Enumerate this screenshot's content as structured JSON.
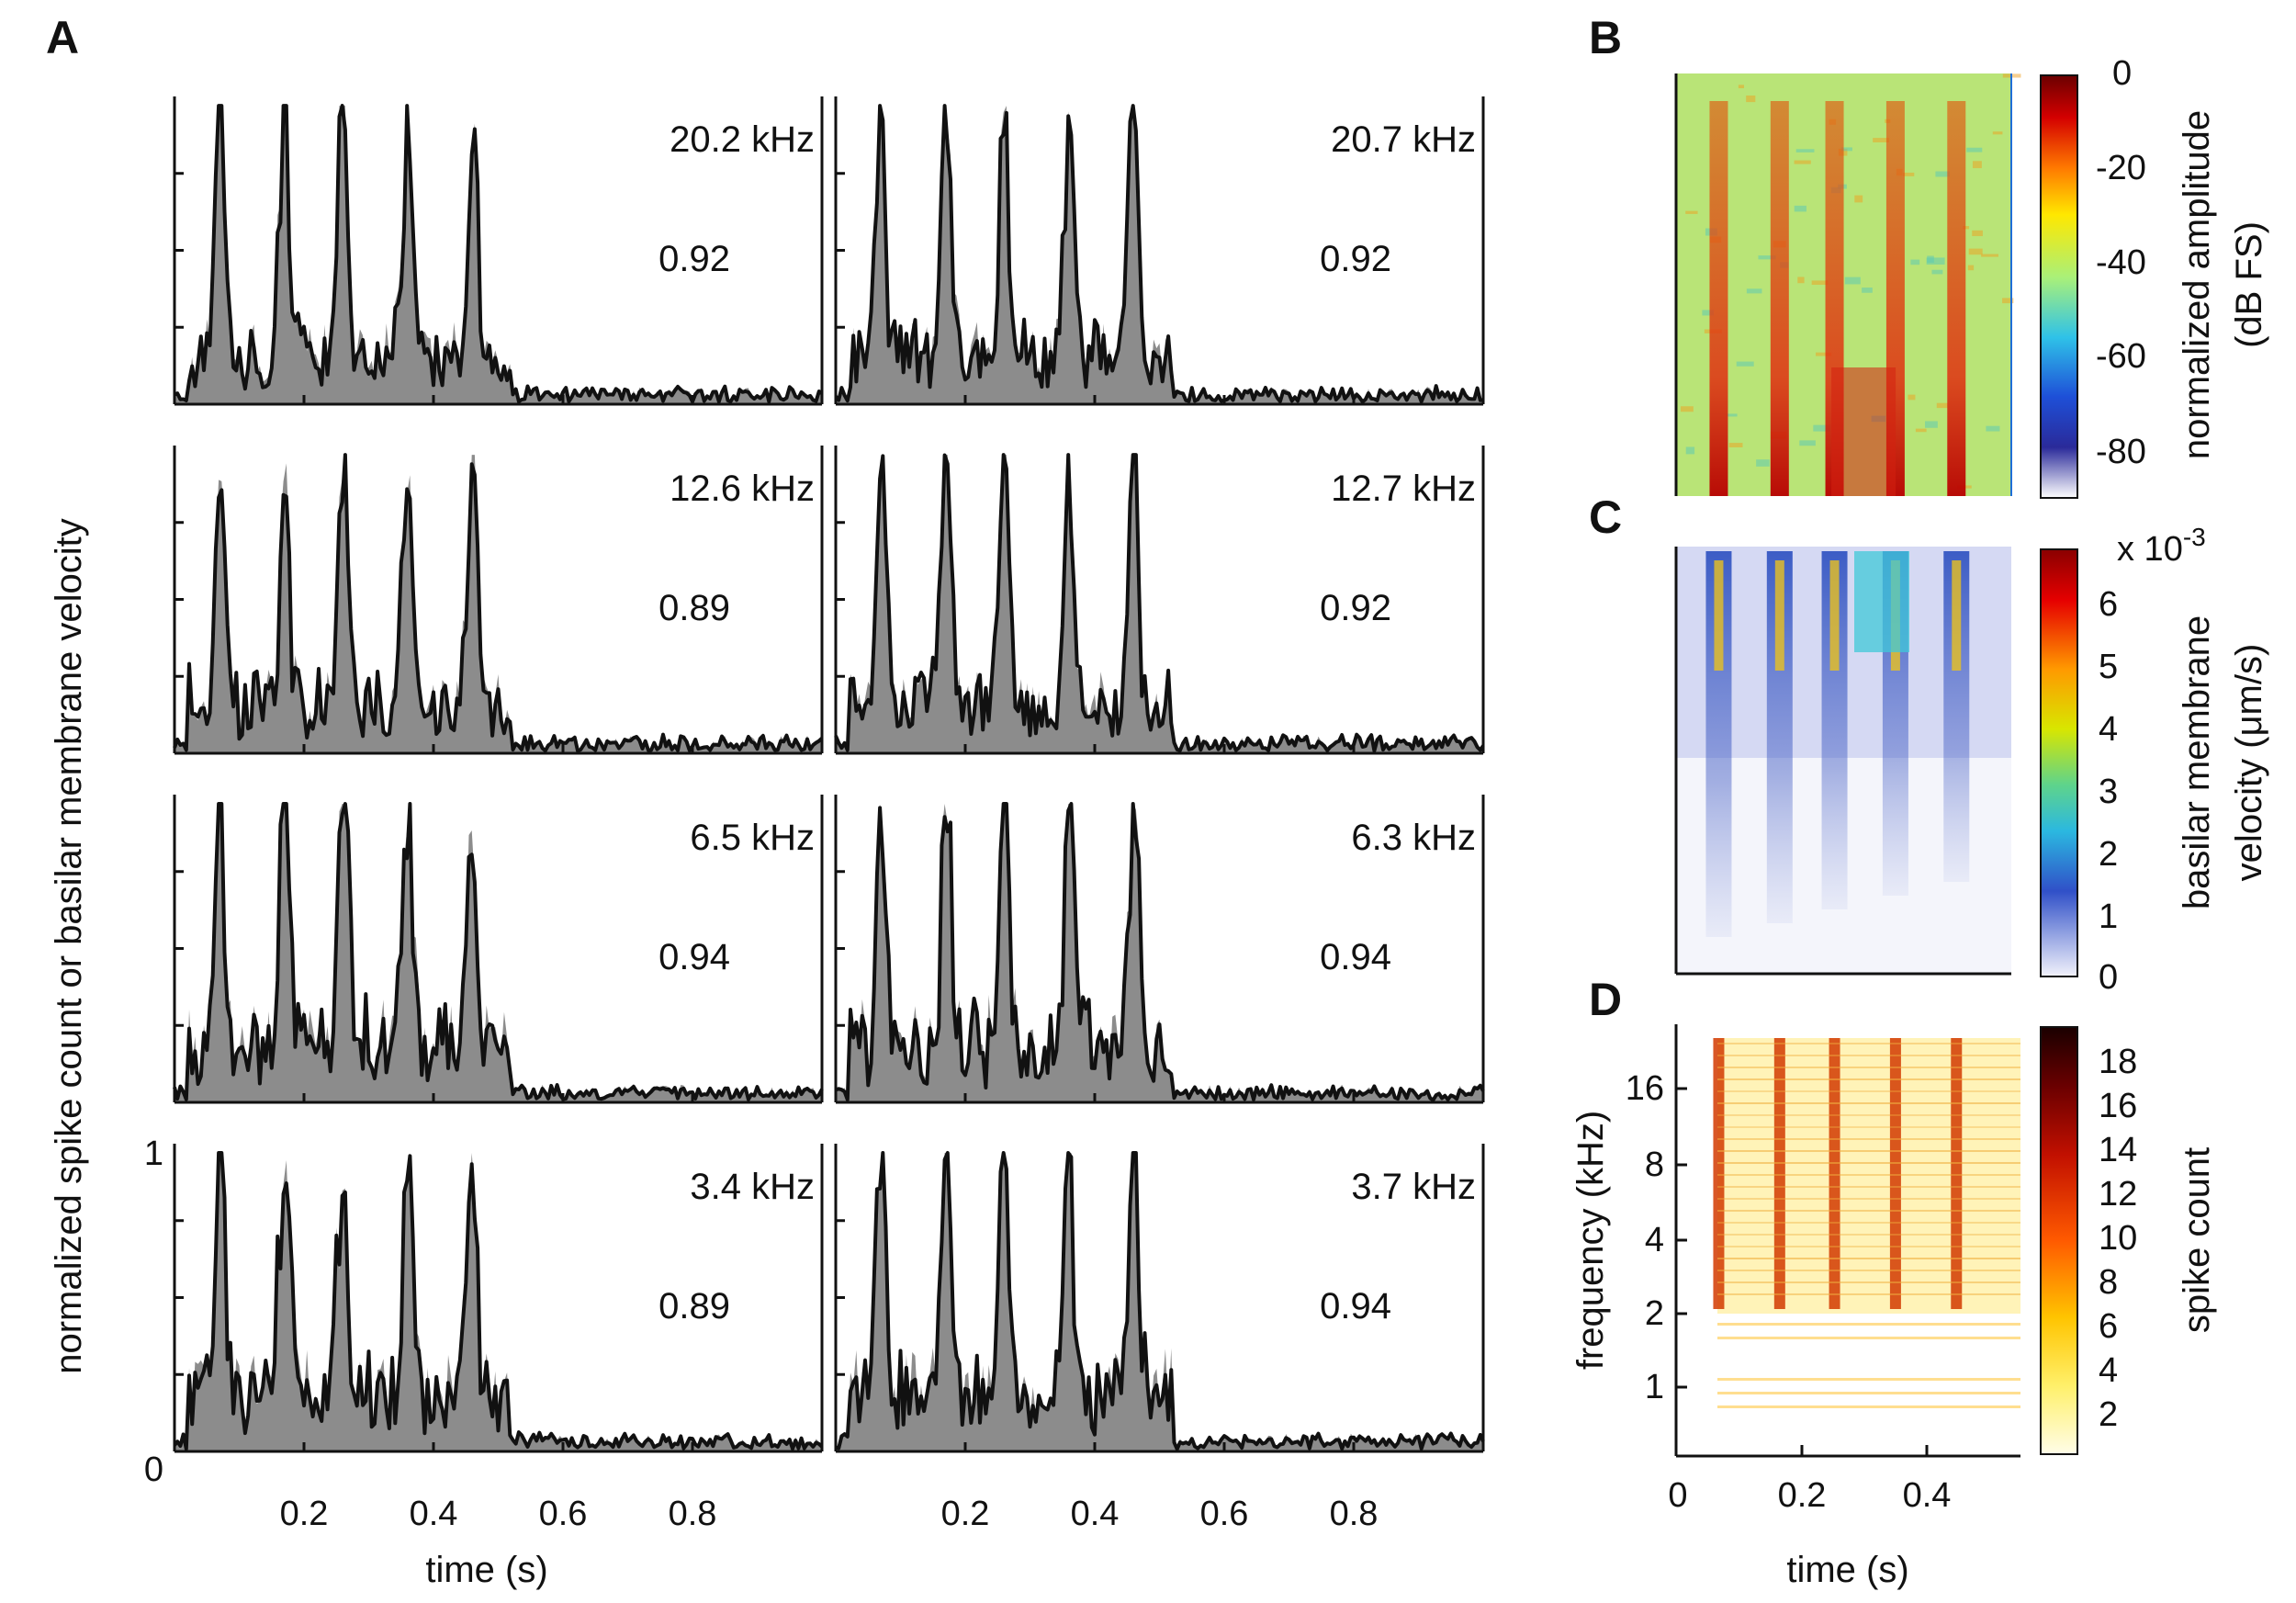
{
  "panel_labels": {
    "a": "A",
    "b": "B",
    "c": "C",
    "d": "D"
  },
  "chart_data": [
    {
      "panel": "A",
      "type": "line",
      "ylabel": "normalized spike count or basilar membrane velocity",
      "xlabel": "time (s)",
      "xlim": [
        0,
        1.0
      ],
      "ylim": [
        0,
        1
      ],
      "ytick_labels": [
        "0",
        "1"
      ],
      "xtick_labels": [
        "0.2",
        "0.4",
        "0.6",
        "0.8"
      ],
      "xticks": [
        0.2,
        0.4,
        0.6,
        0.8
      ],
      "peak_times": [
        0.07,
        0.17,
        0.26,
        0.36,
        0.46
      ],
      "grey_series": "normalized spike count",
      "black_series": "basilar membrane velocity",
      "subplots": [
        {
          "label": "20.2 kHz",
          "value": "0.92",
          "row": 0,
          "col": 0
        },
        {
          "label": "20.7 kHz",
          "value": "0.92",
          "row": 0,
          "col": 1
        },
        {
          "label": "12.6 kHz",
          "value": "0.89",
          "row": 1,
          "col": 0
        },
        {
          "label": "12.7 kHz",
          "value": "0.92",
          "row": 1,
          "col": 1
        },
        {
          "label": "6.5 kHz",
          "value": "0.94",
          "row": 2,
          "col": 0
        },
        {
          "label": "6.3 kHz",
          "value": "0.94",
          "row": 2,
          "col": 1
        },
        {
          "label": "3.4 kHz",
          "value": "0.89",
          "row": 3,
          "col": 0
        },
        {
          "label": "3.7 kHz",
          "value": "0.94",
          "row": 3,
          "col": 1
        }
      ]
    },
    {
      "panel": "B",
      "type": "heatmap",
      "colorbar_label_line1": "normalized amplitude",
      "colorbar_label_line2": "(dB FS)",
      "colorbar_ticks": [
        "0",
        "-20",
        "-40",
        "-60",
        "-80"
      ],
      "colorbar_range": [
        -90,
        0
      ],
      "colormap": [
        "#7f0000",
        "#ff0000",
        "#ffff00",
        "#7fffbf",
        "#00bfff",
        "#0000ff",
        "#ffffff"
      ]
    },
    {
      "panel": "C",
      "type": "heatmap",
      "colorbar_label_line1": "basilar membrane",
      "colorbar_label_line2": "velocity (μm/s)",
      "colorbar_multiplier_base": "x 10",
      "colorbar_multiplier_exp": "-3",
      "colorbar_ticks": [
        "6",
        "5",
        "4",
        "3",
        "2",
        "1",
        "0"
      ],
      "colorbar_range": [
        0,
        6.8
      ]
    },
    {
      "panel": "D",
      "type": "heatmap",
      "xlabel": "time (s)",
      "ylabel": "frequency (kHz)",
      "xtick_labels": [
        "0",
        "0.2",
        "0.4"
      ],
      "ytick_labels": [
        "16",
        "8",
        "4",
        "2",
        "1"
      ],
      "colorbar_label": "spike count",
      "colorbar_ticks": [
        "18",
        "16",
        "14",
        "12",
        "10",
        "8",
        "6",
        "4",
        "2"
      ],
      "colorbar_range": [
        0,
        19
      ]
    }
  ]
}
